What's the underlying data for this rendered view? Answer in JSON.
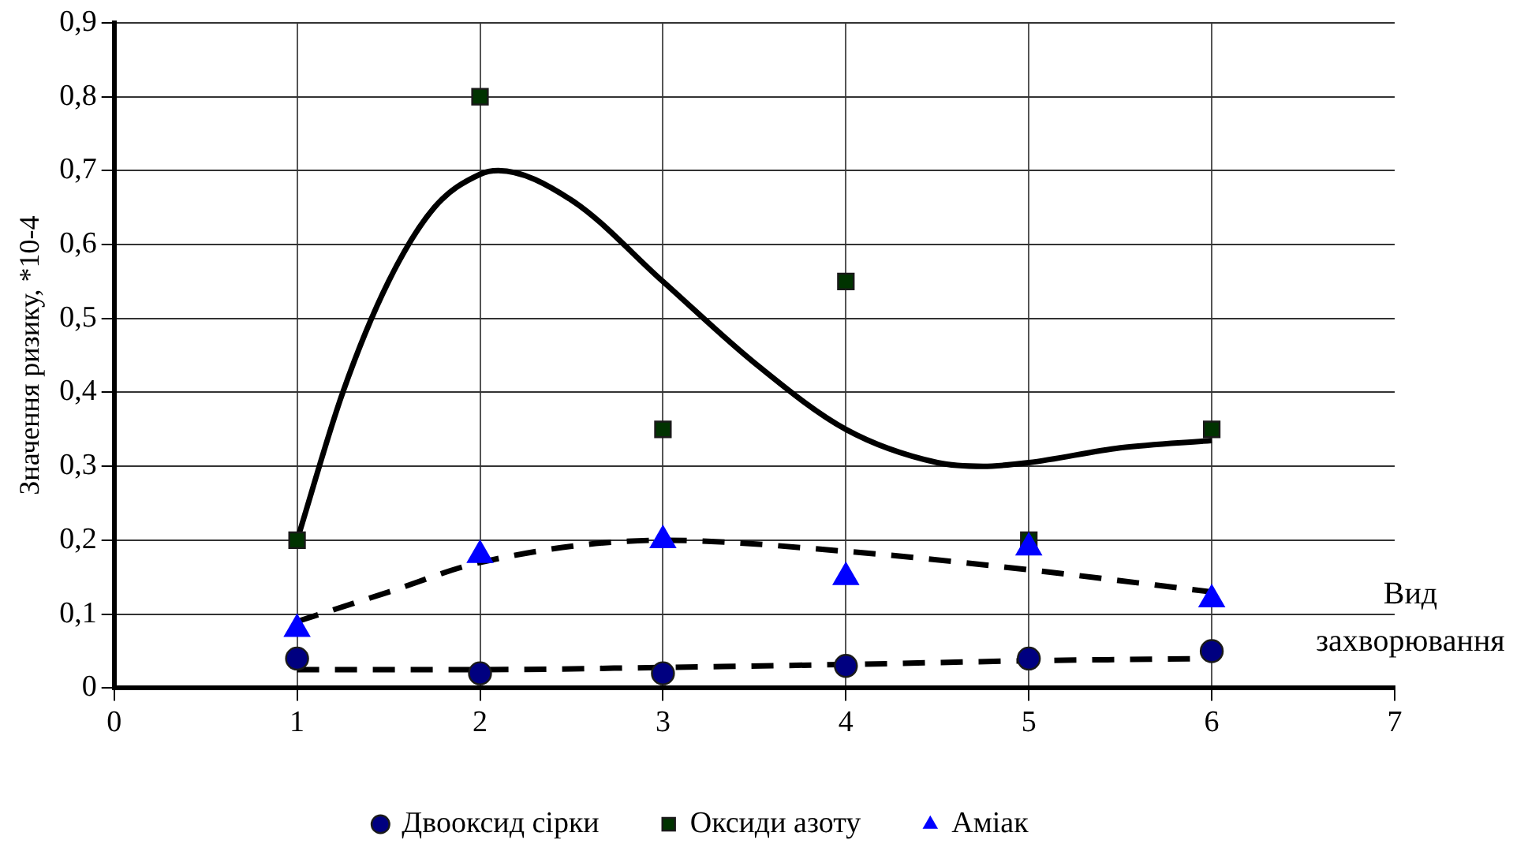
{
  "chart_data": {
    "type": "scatter",
    "xlabel": "Вид захворювання",
    "ylabel": "Значення ризику, *10-4",
    "x": [
      1,
      2,
      3,
      4,
      5,
      6
    ],
    "series": [
      {
        "name": "Двооксид сірки",
        "color": "#000080",
        "marker": "circle",
        "values": [
          0.04,
          0.02,
          0.02,
          0.03,
          0.04,
          0.05
        ]
      },
      {
        "name": "Оксиди азоту",
        "color": "#003300",
        "marker": "square",
        "values": [
          0.2,
          0.8,
          0.35,
          0.55,
          0.2,
          0.35
        ]
      },
      {
        "name": "Аміак",
        "color": "#0000ff",
        "marker": "triangle",
        "values": [
          0.08,
          0.18,
          0.2,
          0.15,
          0.19,
          0.12
        ]
      },
      {
        "type": "line",
        "color": "#000000",
        "line_style": "solid",
        "marker": "none",
        "x": [
          1,
          1.25,
          1.5,
          1.75,
          2,
          2.1,
          2.5,
          3,
          3.5,
          4,
          4.5,
          4.75,
          5,
          5.5,
          6
        ],
        "values": [
          0.2,
          0.4,
          0.55,
          0.65,
          0.695,
          0.7,
          0.66,
          0.55,
          0.44,
          0.35,
          0.305,
          0.3,
          0.305,
          0.325,
          0.335
        ]
      },
      {
        "type": "line",
        "color": "#000000",
        "line_style": "dashed",
        "marker": "none",
        "x": [
          1,
          1.5,
          2,
          3,
          4,
          5,
          6
        ],
        "values": [
          0.09,
          0.13,
          0.17,
          0.2,
          0.185,
          0.16,
          0.13
        ]
      },
      {
        "type": "line",
        "color": "#000000",
        "line_style": "dashed",
        "marker": "none",
        "x": [
          1,
          2,
          3,
          4,
          5,
          6
        ],
        "values": [
          0.025,
          0.025,
          0.028,
          0.032,
          0.037,
          0.04
        ]
      }
    ],
    "xlim": [
      0,
      7
    ],
    "xticks": [
      0,
      1,
      2,
      3,
      4,
      5,
      6,
      7
    ],
    "ylim": [
      0,
      0.9
    ],
    "yticks": [
      0,
      {
        "value": 0.1,
        "label": "0,1"
      },
      {
        "value": 0.2,
        "label": "0,2"
      },
      {
        "value": 0.3,
        "label": "0,3"
      },
      {
        "value": 0.4,
        "label": "0,4"
      },
      {
        "value": 0.5,
        "label": "0,5"
      },
      {
        "value": 0.6,
        "label": "0,6"
      },
      {
        "value": 0.7,
        "label": "0,7"
      },
      {
        "value": 0.8,
        "label": "0,8"
      },
      {
        "value": 0.9,
        "label": "0,9"
      }
    ],
    "grid": true,
    "legend": "bottom"
  }
}
